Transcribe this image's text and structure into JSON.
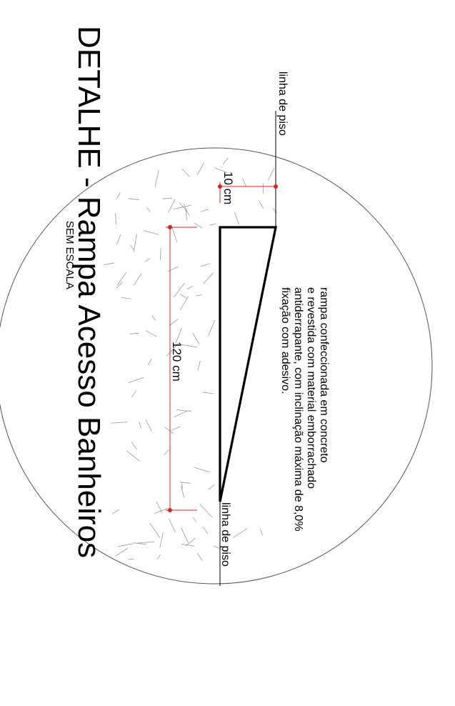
{
  "title": "DETALHE - Rampa Acesso Banheiros",
  "subtitle": "SEM ESCALA",
  "floor_line_label_top": "linha de piso",
  "floor_line_label_bottom": "linha de piso",
  "dimension_height": "10 cm",
  "dimension_length": "120 cm",
  "note_lines": [
    "rampa confeccionada em concreto",
    "e revestida com material emborrachado",
    "antiderrapante, com inclinação máxima de 8,0%",
    "fixação com adesivo."
  ],
  "colors": {
    "line": "#000000",
    "dimension": "#e02020",
    "hatch": "#9a9a9a"
  }
}
